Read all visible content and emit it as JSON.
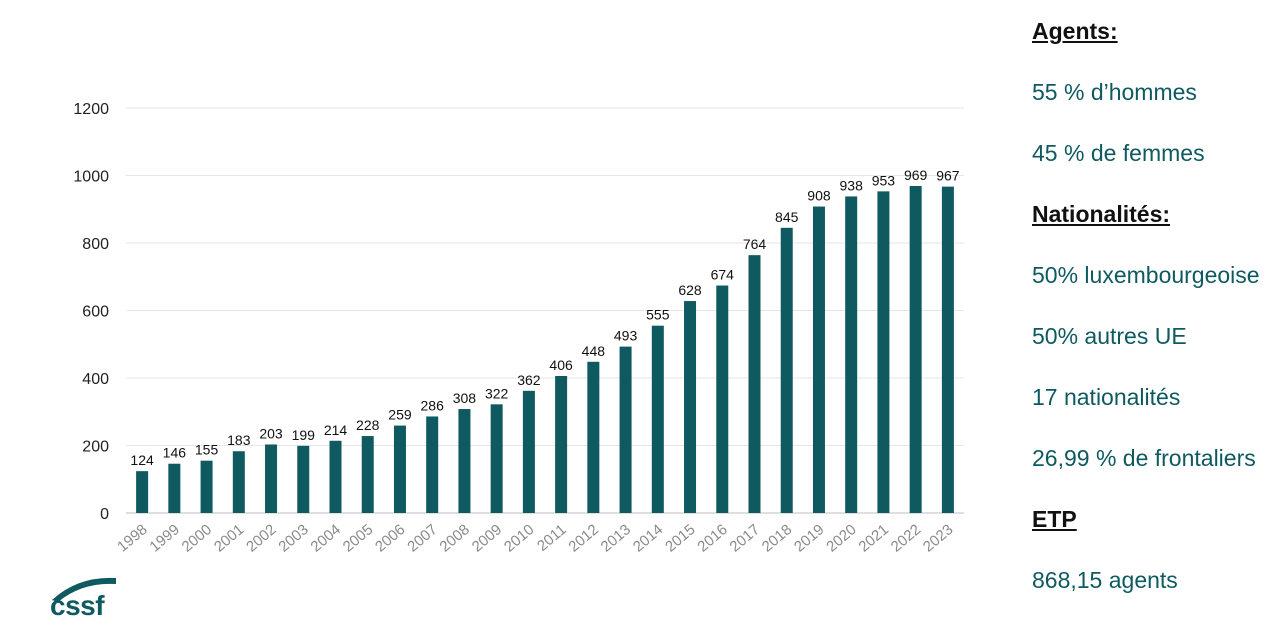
{
  "chart_data": {
    "type": "bar",
    "categories": [
      "1998",
      "1999",
      "2000",
      "2001",
      "2002",
      "2003",
      "2004",
      "2005",
      "2006",
      "2007",
      "2008",
      "2009",
      "2010",
      "2011",
      "2012",
      "2013",
      "2014",
      "2015",
      "2016",
      "2017",
      "2018",
      "2019",
      "2020",
      "2021",
      "2022",
      "2023"
    ],
    "values": [
      124,
      146,
      155,
      183,
      203,
      199,
      214,
      228,
      259,
      286,
      308,
      322,
      362,
      406,
      448,
      493,
      555,
      628,
      674,
      764,
      845,
      908,
      938,
      953,
      969,
      967
    ],
    "yticks": [
      0,
      200,
      400,
      600,
      800,
      1000,
      1200
    ],
    "ylim": [
      0,
      1200
    ],
    "title": "",
    "xlabel": "",
    "ylabel": "",
    "grid": true,
    "bar_color": "#0e5a60",
    "data_labels": true
  },
  "side": {
    "agents_heading": "Agents:",
    "men": "55 % d’hommes",
    "women": "45 % de femmes",
    "nat_heading": "Nationalités:",
    "lux": "50% luxembourgeoise",
    "other_eu": "50% autres UE",
    "nat_count": "17 nationalités",
    "frontaliers": "26,99 % de frontaliers",
    "etp_heading": "ETP",
    "etp_value": "868,15 agents"
  },
  "logo": {
    "text": "cssf",
    "color": "#0e5a60"
  }
}
